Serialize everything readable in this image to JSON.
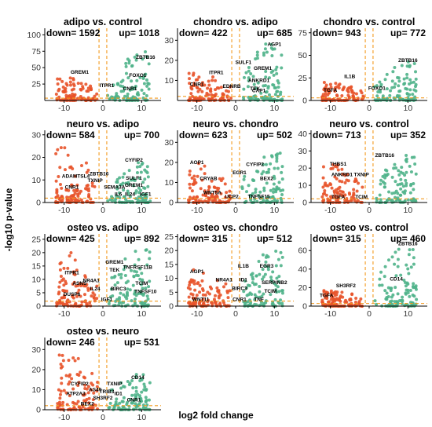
{
  "figure": {
    "xlabel": "log2 fold change",
    "ylabel": "-log10 p-value",
    "colors": {
      "down": "#e8532a",
      "up": "#4fb38a",
      "threshold": "#f39a1e"
    }
  },
  "chart_data": [
    {
      "type": "scatter",
      "title": "adipo vs. control",
      "down_label": "down= 1592",
      "up_label": "up= 1018",
      "xlim": [
        -15,
        15
      ],
      "ylim": [
        0,
        110
      ],
      "xticks": [
        -10,
        0,
        10
      ],
      "yticks": [
        25,
        50,
        75,
        100
      ],
      "annotations": [
        {
          "label": "GREM1",
          "x": -6,
          "y": 37
        },
        {
          "label": "ITPR1",
          "x": 1,
          "y": 17
        },
        {
          "label": "ZBTB16",
          "x": 11,
          "y": 60
        },
        {
          "label": "FOXO1",
          "x": 9,
          "y": 32
        },
        {
          "label": "CNR1",
          "x": 7,
          "y": 12
        }
      ],
      "down_max": 35,
      "up_max": 75
    },
    {
      "type": "scatter",
      "title": "chondro vs. adipo",
      "down_label": "down= 422",
      "up_label": "up= 685",
      "xlim": [
        -15,
        15
      ],
      "ylim": [
        0,
        36
      ],
      "xticks": [
        -10,
        0,
        10
      ],
      "yticks": [
        10,
        20,
        30
      ],
      "annotations": [
        {
          "label": "AGP1",
          "x": 10,
          "y": 26
        },
        {
          "label": "SULF1",
          "x": 2,
          "y": 17
        },
        {
          "label": "GREM1",
          "x": 7,
          "y": 14
        },
        {
          "label": "ANKRD1",
          "x": 6,
          "y": 8
        },
        {
          "label": "TEK",
          "x": 5,
          "y": 4
        },
        {
          "label": "CAP1",
          "x": 6,
          "y": 3
        },
        {
          "label": "ITPR1",
          "x": -5,
          "y": 12
        },
        {
          "label": "CNR1",
          "x": -10,
          "y": 6
        },
        {
          "label": "EDNRB",
          "x": -1,
          "y": 5
        }
      ],
      "down_max": 14,
      "up_max": 30
    },
    {
      "type": "scatter",
      "title": "chondro vs. control",
      "down_label": "down= 943",
      "up_label": "up= 772",
      "xlim": [
        -15,
        15
      ],
      "ylim": [
        0,
        80
      ],
      "xticks": [
        -10,
        0,
        10
      ],
      "yticks": [
        0,
        25,
        50,
        75
      ],
      "annotations": [
        {
          "label": "ZBTB16",
          "x": 10,
          "y": 40
        },
        {
          "label": "IL1B",
          "x": -5,
          "y": 22
        },
        {
          "label": "TGFA",
          "x": -10,
          "y": 7
        },
        {
          "label": "FOXO1",
          "x": 2,
          "y": 9
        }
      ],
      "down_max": 22,
      "up_max": 45
    },
    {
      "type": "scatter",
      "title": "neuro vs. adipo",
      "down_label": "down= 584",
      "up_label": "up= 700",
      "xlim": [
        -15,
        15
      ],
      "ylim": [
        0,
        32
      ],
      "xticks": [
        -10,
        0,
        10
      ],
      "yticks": [
        0,
        10,
        20,
        30
      ],
      "annotations": [
        {
          "label": "CYFIP2",
          "x": 8,
          "y": 17
        },
        {
          "label": "ZBTB16",
          "x": -1,
          "y": 11
        },
        {
          "label": "SULF1",
          "x": 8,
          "y": 9
        },
        {
          "label": "ADAMTSL4",
          "x": -7,
          "y": 10
        },
        {
          "label": "TXNIP",
          "x": -2,
          "y": 8
        },
        {
          "label": "SEMA3A",
          "x": 3,
          "y": 5
        },
        {
          "label": "GREM1",
          "x": 8,
          "y": 6
        },
        {
          "label": "CNR1",
          "x": -8,
          "y": 5
        },
        {
          "label": "IL6",
          "x": 4,
          "y": 2
        },
        {
          "label": "IL24",
          "x": 7,
          "y": 2
        },
        {
          "label": "IGF1",
          "x": 11,
          "y": 2
        }
      ],
      "down_max": 25,
      "up_max": 18
    },
    {
      "type": "scatter",
      "title": "neuro vs. chondro",
      "down_label": "down= 623",
      "up_label": "up= 502",
      "xlim": [
        -15,
        15
      ],
      "ylim": [
        0,
        36
      ],
      "xticks": [
        -10,
        0,
        10
      ],
      "yticks": [
        0,
        10,
        20,
        30
      ],
      "annotations": [
        {
          "label": "AOP1",
          "x": -10,
          "y": 18
        },
        {
          "label": "CRYAB",
          "x": -7,
          "y": 10
        },
        {
          "label": "CYFIP2",
          "x": 5,
          "y": 17
        },
        {
          "label": "EGR1",
          "x": 1,
          "y": 13
        },
        {
          "label": "BEX2",
          "x": 8,
          "y": 10
        },
        {
          "label": "WNT5A",
          "x": -6,
          "y": 3
        },
        {
          "label": "UCP2",
          "x": -1,
          "y": 1
        },
        {
          "label": "TNFSF15",
          "x": 6,
          "y": 1
        }
      ],
      "down_max": 20,
      "up_max": 25
    },
    {
      "type": "scatter",
      "title": "neuro vs. control",
      "down_label": "down= 713",
      "up_label": "up= 352",
      "xlim": [
        -15,
        15
      ],
      "ylim": [
        0,
        42
      ],
      "xticks": [
        -10,
        0,
        10
      ],
      "yticks": [
        0,
        10,
        20,
        30,
        40
      ],
      "annotations": [
        {
          "label": "ZBTB16",
          "x": 4,
          "y": 25
        },
        {
          "label": "THBS1",
          "x": -8,
          "y": 20
        },
        {
          "label": "TXNIP",
          "x": -2,
          "y": 14
        },
        {
          "label": "ANKRD1",
          "x": -7,
          "y": 14
        },
        {
          "label": "TGFA",
          "x": -8,
          "y": 1
        },
        {
          "label": "TCIM",
          "x": -2,
          "y": 1
        }
      ],
      "down_max": 22,
      "up_max": 28
    },
    {
      "type": "scatter",
      "title": "osteo vs. adipo",
      "down_label": "down= 425",
      "up_label": "up= 892",
      "xlim": [
        -15,
        15
      ],
      "ylim": [
        0,
        27
      ],
      "xticks": [
        -10,
        0,
        10
      ],
      "yticks": [
        0,
        5,
        10,
        15,
        20,
        25
      ],
      "annotations": [
        {
          "label": "GREM1",
          "x": 3,
          "y": 15
        },
        {
          "label": "TEK",
          "x": 3,
          "y": 12
        },
        {
          "label": "TNFRSF11B",
          "x": 9,
          "y": 13
        },
        {
          "label": "ITPR1",
          "x": -8,
          "y": 11
        },
        {
          "label": "NR4A1",
          "x": -3,
          "y": 8
        },
        {
          "label": "ASNS",
          "x": -6,
          "y": 7
        },
        {
          "label": "TCIM",
          "x": 10,
          "y": 7
        },
        {
          "label": "IL24",
          "x": -2,
          "y": 5
        },
        {
          "label": "BIRC3",
          "x": 4,
          "y": 5
        },
        {
          "label": "TNFSF10",
          "x": 11,
          "y": 4
        },
        {
          "label": "DUSP6",
          "x": -8,
          "y": 3
        },
        {
          "label": "IGF1",
          "x": 1,
          "y": 1
        }
      ],
      "down_max": 20,
      "up_max": 22
    },
    {
      "type": "scatter",
      "title": "osteo vs. chondro",
      "down_label": "down= 315",
      "up_label": "up= 512",
      "xlim": [
        -15,
        15
      ],
      "ylim": [
        0,
        26
      ],
      "xticks": [
        -10,
        0,
        10
      ],
      "yticks": [
        0,
        5,
        10,
        15,
        20,
        25
      ],
      "annotations": [
        {
          "label": "IL1B",
          "x": 2,
          "y": 13
        },
        {
          "label": "EGR3",
          "x": 8,
          "y": 13
        },
        {
          "label": "AGP1",
          "x": -10,
          "y": 11
        },
        {
          "label": "ID1",
          "x": 2,
          "y": 8
        },
        {
          "label": "NR4A1",
          "x": -3,
          "y": 8
        },
        {
          "label": "SERPINB2",
          "x": 10,
          "y": 7
        },
        {
          "label": "BIRC3",
          "x": 1,
          "y": 5
        },
        {
          "label": "TCIM",
          "x": 9,
          "y": 4
        },
        {
          "label": "WNT11",
          "x": -9,
          "y": 1
        },
        {
          "label": "CNR1",
          "x": 1,
          "y": 1
        },
        {
          "label": "TNF",
          "x": 6,
          "y": 1
        }
      ],
      "down_max": 14,
      "up_max": 20
    },
    {
      "type": "scatter",
      "title": "osteo vs. control",
      "down_label": "down= 315",
      "up_label": "up= 460",
      "xlim": [
        -15,
        15
      ],
      "ylim": [
        0,
        78
      ],
      "xticks": [
        -10,
        0,
        10
      ],
      "yticks": [
        0,
        20,
        40,
        60
      ],
      "annotations": [
        {
          "label": "ZBTB16",
          "x": 10,
          "y": 63
        },
        {
          "label": "CD14",
          "x": 7,
          "y": 25
        },
        {
          "label": "SH3RF2",
          "x": -6,
          "y": 18
        },
        {
          "label": "TGFA",
          "x": -11,
          "y": 7
        }
      ],
      "down_max": 18,
      "up_max": 65
    },
    {
      "type": "scatter",
      "title": "osteo vs. neuro",
      "down_label": "down= 246",
      "up_label": "up= 531",
      "xlim": [
        -15,
        15
      ],
      "ylim": [
        0,
        36
      ],
      "xticks": [
        -10,
        0,
        10
      ],
      "yticks": [
        0,
        10,
        20,
        30
      ],
      "annotations": [
        {
          "label": "CD14",
          "x": 9,
          "y": 14
        },
        {
          "label": "TXNIP",
          "x": 3,
          "y": 11
        },
        {
          "label": "CYFIP2",
          "x": -6,
          "y": 11
        },
        {
          "label": "AS49",
          "x": -2,
          "y": 8
        },
        {
          "label": "ATP2A3",
          "x": -7,
          "y": 6
        },
        {
          "label": "TRIB3",
          "x": 1,
          "y": 7
        },
        {
          "label": "ID1",
          "x": 4,
          "y": 6
        },
        {
          "label": "SH3RF2",
          "x": 0,
          "y": 4
        },
        {
          "label": "CNR1",
          "x": 8,
          "y": 3
        },
        {
          "label": "BEX2",
          "x": -4,
          "y": 1
        }
      ],
      "down_max": 30,
      "up_max": 18
    }
  ]
}
